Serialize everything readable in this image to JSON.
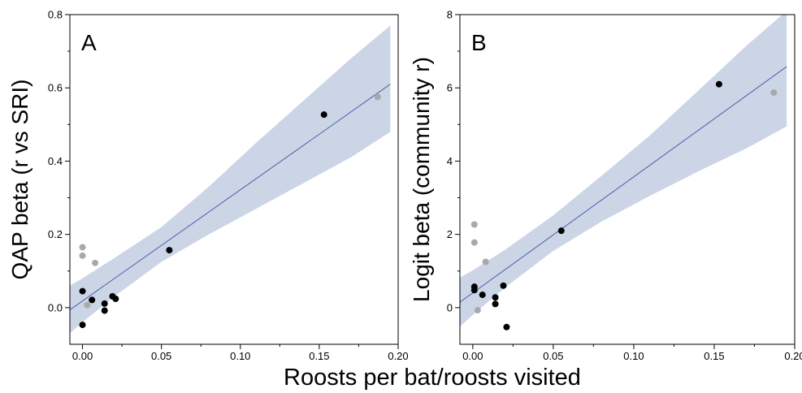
{
  "figure": {
    "xlabel": "Roosts per bat/roosts visited"
  },
  "colors": {
    "band": "#cbd5e6",
    "line": "#4a5fa8",
    "point_black": "#000000",
    "point_gray": "#a9a9a9",
    "axis": "#000000"
  },
  "chart_data": [
    {
      "type": "scatter",
      "panel_label": "A",
      "ylabel": "QAP beta (r vs SRI)",
      "xlim": [
        -0.008,
        0.2
      ],
      "ylim": [
        -0.1,
        0.8
      ],
      "xticks": [
        "0.00",
        "0.05",
        "0.10",
        "0.15",
        "0.20"
      ],
      "xtick_values": [
        0,
        0.05,
        0.1,
        0.15,
        0.2
      ],
      "yticks": [
        "0.0",
        "0.2",
        "0.4",
        "0.6",
        "0.8"
      ],
      "ytick_values": [
        0,
        0.2,
        0.4,
        0.6,
        0.8
      ],
      "grid": false,
      "series": [
        {
          "color": "black",
          "points": [
            {
              "x": 0.0,
              "y": 0.045
            },
            {
              "x": 0.0,
              "y": -0.047
            },
            {
              "x": 0.006,
              "y": 0.021
            },
            {
              "x": 0.014,
              "y": 0.011
            },
            {
              "x": 0.014,
              "y": -0.008
            },
            {
              "x": 0.019,
              "y": 0.031
            },
            {
              "x": 0.021,
              "y": 0.024
            },
            {
              "x": 0.055,
              "y": 0.157
            },
            {
              "x": 0.153,
              "y": 0.527
            }
          ]
        },
        {
          "color": "gray",
          "points": [
            {
              "x": 0.0,
              "y": 0.165
            },
            {
              "x": 0.0,
              "y": 0.142
            },
            {
              "x": 0.008,
              "y": 0.122
            },
            {
              "x": 0.003,
              "y": 0.007
            },
            {
              "x": 0.187,
              "y": 0.575
            }
          ]
        }
      ],
      "fit": {
        "x": [
          -0.008,
          0.195
        ],
        "y": [
          -0.006,
          0.61
        ]
      },
      "confidence_band": [
        {
          "x": -0.008,
          "lo": -0.07,
          "hi": 0.06
        },
        {
          "x": 0.0,
          "lo": -0.04,
          "hi": 0.08
        },
        {
          "x": 0.02,
          "lo": 0.03,
          "hi": 0.135
        },
        {
          "x": 0.05,
          "lo": 0.125,
          "hi": 0.22
        },
        {
          "x": 0.08,
          "lo": 0.2,
          "hi": 0.33
        },
        {
          "x": 0.11,
          "lo": 0.27,
          "hi": 0.45
        },
        {
          "x": 0.14,
          "lo": 0.34,
          "hi": 0.565
        },
        {
          "x": 0.17,
          "lo": 0.41,
          "hi": 0.68
        },
        {
          "x": 0.195,
          "lo": 0.48,
          "hi": 0.77
        }
      ]
    },
    {
      "type": "scatter",
      "panel_label": "B",
      "ylabel": "Logit beta (community r)",
      "xlim": [
        -0.008,
        0.2
      ],
      "ylim": [
        -1,
        8
      ],
      "xticks": [
        "0.00",
        "0.05",
        "0.10",
        "0.15",
        "0.20"
      ],
      "xtick_values": [
        0,
        0.05,
        0.1,
        0.15,
        0.2
      ],
      "yticks": [
        "0",
        "2",
        "4",
        "6",
        "8"
      ],
      "ytick_values": [
        0,
        2,
        4,
        6,
        8
      ],
      "grid": false,
      "series": [
        {
          "color": "black",
          "points": [
            {
              "x": 0.001,
              "y": 0.57
            },
            {
              "x": 0.001,
              "y": 0.48
            },
            {
              "x": 0.006,
              "y": 0.35
            },
            {
              "x": 0.014,
              "y": 0.28
            },
            {
              "x": 0.014,
              "y": 0.1
            },
            {
              "x": 0.019,
              "y": 0.6
            },
            {
              "x": 0.021,
              "y": -0.53
            },
            {
              "x": 0.055,
              "y": 2.1
            },
            {
              "x": 0.153,
              "y": 6.1
            }
          ]
        },
        {
          "color": "gray",
          "points": [
            {
              "x": 0.001,
              "y": 2.27
            },
            {
              "x": 0.001,
              "y": 1.78
            },
            {
              "x": 0.008,
              "y": 1.25
            },
            {
              "x": 0.003,
              "y": -0.07
            },
            {
              "x": 0.187,
              "y": 5.87
            }
          ]
        }
      ],
      "fit": {
        "x": [
          -0.008,
          0.195
        ],
        "y": [
          0.15,
          6.58
        ]
      },
      "confidence_band": [
        {
          "x": -0.008,
          "lo": -0.52,
          "hi": 0.82
        },
        {
          "x": 0.0,
          "lo": -0.2,
          "hi": 1.02
        },
        {
          "x": 0.02,
          "lo": 0.55,
          "hi": 1.58
        },
        {
          "x": 0.05,
          "lo": 1.55,
          "hi": 2.52
        },
        {
          "x": 0.08,
          "lo": 2.35,
          "hi": 3.6
        },
        {
          "x": 0.11,
          "lo": 3.05,
          "hi": 4.7
        },
        {
          "x": 0.14,
          "lo": 3.72,
          "hi": 5.92
        },
        {
          "x": 0.17,
          "lo": 4.35,
          "hi": 7.15
        },
        {
          "x": 0.195,
          "lo": 4.95,
          "hi": 8.1
        }
      ]
    }
  ]
}
